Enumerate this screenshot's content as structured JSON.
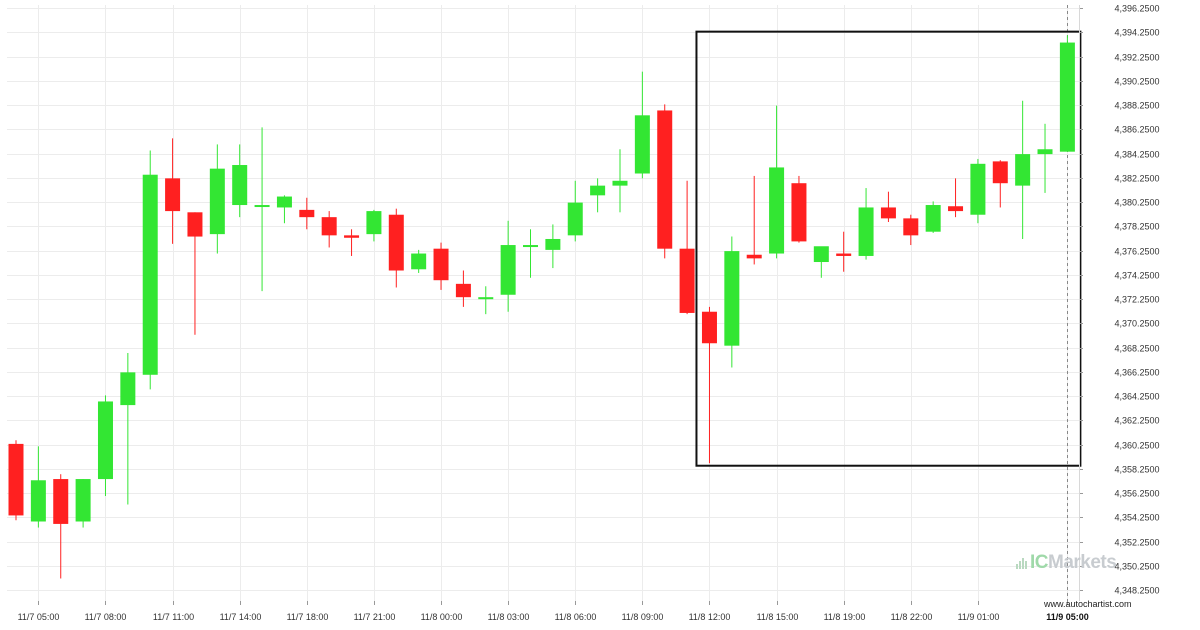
{
  "chart_data": {
    "type": "candlestick",
    "y_axis": {
      "ylim": [
        4347.5,
        4396.5
      ],
      "tick_values": [
        4348.25,
        4350.25,
        4352.25,
        4354.25,
        4356.25,
        4358.25,
        4360.25,
        4362.25,
        4364.25,
        4366.25,
        4368.25,
        4370.25,
        4372.25,
        4374.25,
        4376.25,
        4378.25,
        4380.25,
        4382.25,
        4384.25,
        4386.25,
        4388.25,
        4390.25,
        4392.25,
        4394.25,
        4396.25
      ],
      "tick_labels": [
        "4,348.2500",
        "4,350.2500",
        "4,352.2500",
        "4,354.2500",
        "4,356.2500",
        "4,358.2500",
        "4,360.2500",
        "4,362.2500",
        "4,364.2500",
        "4,366.2500",
        "4,368.2500",
        "4,370.2500",
        "4,372.2500",
        "4,374.2500",
        "4,376.2500",
        "4,378.2500",
        "4,380.2500",
        "4,382.2500",
        "4,384.2500",
        "4,386.2500",
        "4,388.2500",
        "4,390.2500",
        "4,392.2500",
        "4,394.2500",
        "4,396.2500"
      ],
      "position": "right",
      "grid": true
    },
    "x_axis": {
      "tick_labels": [
        "11/7 05:00",
        "11/7 08:00",
        "11/7 11:00",
        "11/7 14:00",
        "11/7 18:00",
        "11/7 21:00",
        "11/8 00:00",
        "11/8 03:00",
        "11/8 06:00",
        "11/8 09:00",
        "11/8 12:00",
        "11/8 15:00",
        "11/8 19:00",
        "11/8 22:00",
        "11/9 01:00",
        "11/9 05:00"
      ],
      "tick_candle_index": [
        1,
        4,
        7,
        10,
        13,
        16,
        19,
        22,
        25,
        28,
        31,
        34,
        37,
        40,
        43,
        47
      ],
      "highlight_label": "11/9 05:00",
      "grid": true
    },
    "up_color": "#33e633",
    "down_color": "#ff2020",
    "candles": [
      {
        "o": 4360.3,
        "h": 4360.6,
        "l": 4354.0,
        "c": 4354.4
      },
      {
        "o": 4353.9,
        "h": 4360.1,
        "l": 4353.4,
        "c": 4357.3
      },
      {
        "o": 4357.4,
        "h": 4357.8,
        "l": 4349.2,
        "c": 4353.7
      },
      {
        "o": 4353.9,
        "h": 4357.4,
        "l": 4353.4,
        "c": 4357.4
      },
      {
        "o": 4357.4,
        "h": 4364.3,
        "l": 4356.0,
        "c": 4363.8
      },
      {
        "o": 4363.5,
        "h": 4367.8,
        "l": 4355.3,
        "c": 4366.2
      },
      {
        "o": 4366.0,
        "h": 4384.5,
        "l": 4364.8,
        "c": 4382.5
      },
      {
        "o": 4382.2,
        "h": 4385.5,
        "l": 4376.8,
        "c": 4379.5
      },
      {
        "o": 4379.4,
        "h": 4379.4,
        "l": 4369.3,
        "c": 4377.4
      },
      {
        "o": 4377.6,
        "h": 4385.0,
        "l": 4376.0,
        "c": 4383.0
      },
      {
        "o": 4380.0,
        "h": 4385.0,
        "l": 4379.0,
        "c": 4383.3
      },
      {
        "o": 4380.0,
        "h": 4386.4,
        "l": 4372.9,
        "c": 4380.0
      },
      {
        "o": 4379.8,
        "h": 4380.8,
        "l": 4378.5,
        "c": 4380.7
      },
      {
        "o": 4379.6,
        "h": 4380.6,
        "l": 4378.0,
        "c": 4379.0
      },
      {
        "o": 4379.0,
        "h": 4379.5,
        "l": 4376.5,
        "c": 4377.5
      },
      {
        "o": 4377.5,
        "h": 4378.0,
        "l": 4375.8,
        "c": 4377.3
      },
      {
        "o": 4377.6,
        "h": 4379.6,
        "l": 4377.0,
        "c": 4379.5
      },
      {
        "o": 4379.2,
        "h": 4379.7,
        "l": 4373.2,
        "c": 4374.6
      },
      {
        "o": 4374.7,
        "h": 4376.3,
        "l": 4374.4,
        "c": 4376.0
      },
      {
        "o": 4376.4,
        "h": 4376.9,
        "l": 4373.0,
        "c": 4373.8
      },
      {
        "o": 4373.5,
        "h": 4374.6,
        "l": 4371.6,
        "c": 4372.4
      },
      {
        "o": 4372.4,
        "h": 4373.3,
        "l": 4371.0,
        "c": 4372.4
      },
      {
        "o": 4372.6,
        "h": 4378.7,
        "l": 4371.2,
        "c": 4376.7
      },
      {
        "o": 4376.6,
        "h": 4378.0,
        "l": 4374.0,
        "c": 4376.7
      },
      {
        "o": 4376.3,
        "h": 4378.4,
        "l": 4374.8,
        "c": 4377.2
      },
      {
        "o": 4377.5,
        "h": 4382.0,
        "l": 4377.0,
        "c": 4380.2
      },
      {
        "o": 4380.8,
        "h": 4382.2,
        "l": 4379.4,
        "c": 4381.6
      },
      {
        "o": 4381.6,
        "h": 4384.6,
        "l": 4379.4,
        "c": 4382.0
      },
      {
        "o": 4382.6,
        "h": 4391.0,
        "l": 4382.2,
        "c": 4387.4
      },
      {
        "o": 4387.8,
        "h": 4388.3,
        "l": 4375.6,
        "c": 4376.4
      },
      {
        "o": 4376.4,
        "h": 4382.0,
        "l": 4371.0,
        "c": 4371.1
      },
      {
        "o": 4371.2,
        "h": 4371.6,
        "l": 4358.7,
        "c": 4368.6
      },
      {
        "o": 4368.4,
        "h": 4377.4,
        "l": 4366.6,
        "c": 4376.2
      },
      {
        "o": 4375.9,
        "h": 4382.4,
        "l": 4375.1,
        "c": 4375.6
      },
      {
        "o": 4376.0,
        "h": 4388.2,
        "l": 4375.6,
        "c": 4383.1
      },
      {
        "o": 4381.8,
        "h": 4382.4,
        "l": 4376.9,
        "c": 4377.0
      },
      {
        "o": 4375.3,
        "h": 4376.4,
        "l": 4374.0,
        "c": 4376.6
      },
      {
        "o": 4376.0,
        "h": 4377.8,
        "l": 4374.5,
        "c": 4375.8
      },
      {
        "o": 4375.8,
        "h": 4381.4,
        "l": 4375.5,
        "c": 4379.8
      },
      {
        "o": 4379.8,
        "h": 4381.1,
        "l": 4378.6,
        "c": 4378.9
      },
      {
        "o": 4378.9,
        "h": 4379.2,
        "l": 4376.7,
        "c": 4377.5
      },
      {
        "o": 4377.8,
        "h": 4380.3,
        "l": 4377.7,
        "c": 4380.0
      },
      {
        "o": 4379.9,
        "h": 4382.2,
        "l": 4379.0,
        "c": 4379.5
      },
      {
        "o": 4379.2,
        "h": 4383.8,
        "l": 4378.5,
        "c": 4383.4
      },
      {
        "o": 4383.6,
        "h": 4383.7,
        "l": 4379.8,
        "c": 4381.8
      },
      {
        "o": 4381.6,
        "h": 4388.6,
        "l": 4377.2,
        "c": 4384.2
      },
      {
        "o": 4384.2,
        "h": 4386.7,
        "l": 4381.0,
        "c": 4384.6
      },
      {
        "o": 4384.4,
        "h": 4394.0,
        "l": 4384.4,
        "c": 4393.4
      }
    ],
    "highlight_box": {
      "start_index": 31,
      "end_index": 47,
      "y_top": 4394.3,
      "y_bottom": 4358.5
    },
    "current_time_line_index": 47
  },
  "branding": {
    "broker_ic": "IC",
    "broker_markets": "Markets",
    "website": "www.autochartist.com"
  }
}
